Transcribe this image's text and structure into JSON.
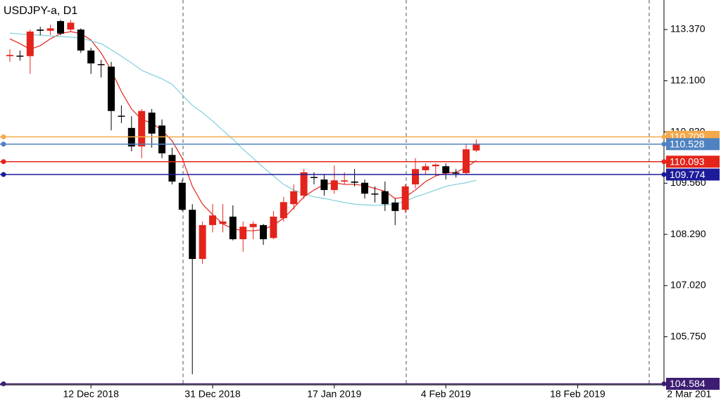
{
  "chart_data": {
    "type": "candlestick",
    "title": "USDJPY-a, D1",
    "categories": [
      null,
      null,
      null,
      null,
      null,
      null,
      null,
      null,
      "12 Dec 2018",
      null,
      null,
      null,
      null,
      null,
      null,
      null,
      null,
      null,
      null,
      null,
      "31 Dec 2018",
      null,
      null,
      null,
      null,
      null,
      null,
      null,
      null,
      null,
      null,
      null,
      "17 Jan 2019",
      null,
      null,
      null,
      null,
      null,
      null,
      null,
      null,
      null,
      null,
      "4 Feb 2019",
      null,
      null,
      null,
      null,
      null,
      null,
      null,
      null,
      null,
      null,
      null,
      null,
      "18 Feb 2019",
      null,
      null,
      null,
      null,
      null,
      null,
      null,
      null,
      null,
      null,
      "2 Mar 201"
    ],
    "open": [
      112.71,
      112.71,
      112.71,
      113.37,
      113.34,
      113.58,
      113.37,
      113.37,
      112.85,
      112.5,
      112.45,
      111.22,
      110.93,
      110.47,
      111.31,
      110.99,
      110.26,
      109.57,
      108.9,
      107.68,
      108.52,
      108.55,
      108.73,
      108.17,
      108.47,
      108.52,
      108.2,
      108.69,
      109.04,
      109.25,
      109.7,
      109.65,
      109.39,
      109.6,
      109.6,
      109.57,
      109.29,
      109.36,
      109.08,
      108.9,
      109.53,
      109.88,
      109.98,
      109.98,
      109.81,
      109.81,
      110.37,
      null,
      null,
      null,
      null,
      null,
      null,
      null,
      null,
      null,
      null,
      null,
      null,
      null,
      null,
      null,
      null,
      null,
      null,
      null,
      null,
      null
    ],
    "high": [
      112.88,
      112.85,
      113.37,
      113.44,
      113.49,
      113.61,
      113.61,
      113.4,
      112.92,
      112.62,
      112.57,
      111.49,
      111.22,
      111.4,
      111.4,
      111.14,
      110.44,
      109.65,
      109.04,
      108.61,
      109.04,
      109.04,
      109.01,
      108.61,
      108.61,
      108.55,
      108.87,
      109.22,
      109.53,
      109.91,
      109.83,
      109.78,
      110.0,
      109.83,
      109.91,
      109.65,
      109.48,
      109.6,
      109.18,
      109.53,
      110.18,
      110.05,
      110.05,
      110.05,
      109.91,
      110.53,
      110.65,
      null,
      null,
      null,
      null,
      null,
      null,
      null,
      null,
      null,
      null,
      null,
      null,
      null,
      null,
      null,
      null,
      null,
      null,
      null,
      null,
      null
    ],
    "low": [
      112.57,
      112.6,
      112.27,
      113.23,
      113.23,
      113.23,
      113.32,
      112.79,
      112.27,
      112.18,
      110.87,
      111.05,
      110.35,
      110.18,
      110.44,
      110.18,
      109.53,
      108.87,
      104.82,
      107.56,
      108.34,
      108.34,
      108.14,
      107.86,
      108.17,
      108.03,
      108.17,
      108.61,
      108.9,
      109.18,
      109.53,
      109.25,
      109.3,
      109.53,
      109.48,
      109.18,
      109.08,
      108.87,
      108.52,
      108.82,
      109.43,
      109.78,
      109.74,
      109.65,
      109.7,
      109.78,
      110.33,
      null,
      null,
      null,
      null,
      null,
      null,
      null,
      null,
      null,
      null,
      null,
      null,
      null,
      null,
      null,
      null,
      null,
      null,
      null,
      null,
      null
    ],
    "close": [
      112.74,
      112.71,
      113.32,
      113.34,
      113.4,
      113.27,
      113.54,
      112.85,
      112.53,
      112.5,
      111.35,
      111.22,
      110.47,
      111.35,
      110.79,
      110.3,
      109.6,
      108.9,
      107.68,
      108.52,
      108.76,
      108.61,
      108.17,
      108.48,
      108.55,
      108.17,
      108.73,
      109.09,
      109.36,
      109.83,
      109.7,
      109.39,
      109.63,
      109.63,
      109.57,
      109.3,
      109.29,
      109.04,
      108.87,
      109.48,
      109.91,
      109.98,
      110.02,
      109.81,
      109.81,
      110.4,
      110.54,
      null,
      null,
      null,
      null,
      null,
      null,
      null,
      null,
      null,
      null,
      null,
      null,
      null,
      null,
      null,
      null,
      null,
      null,
      null,
      null,
      null
    ],
    "up_color": "#e3241b",
    "down_color": "#000000",
    "lines": [
      {
        "color": "#e3241b",
        "values": [
          113.14,
          113.02,
          112.88,
          112.97,
          113.14,
          113.27,
          113.32,
          113.27,
          113.11,
          112.79,
          112.36,
          111.83,
          111.4,
          111.14,
          111.05,
          110.87,
          110.61,
          110.18,
          109.48,
          109.04,
          108.78,
          108.55,
          108.43,
          108.38,
          108.38,
          108.41,
          108.52,
          108.69,
          108.95,
          109.22,
          109.39,
          109.53,
          109.57,
          109.53,
          109.53,
          109.5,
          109.43,
          109.36,
          109.18,
          109.22,
          109.39,
          109.6,
          109.74,
          109.81,
          109.83,
          109.95,
          110.12,
          null,
          null,
          null,
          null,
          null,
          null,
          null,
          null,
          null,
          null,
          null,
          null,
          null,
          null,
          null,
          null,
          null,
          null,
          null,
          null,
          null
        ]
      },
      {
        "color": "#7fcfdc",
        "values": [
          113.28,
          113.26,
          113.24,
          113.23,
          113.21,
          113.2,
          113.18,
          113.16,
          113.09,
          113.02,
          112.87,
          112.71,
          112.54,
          112.36,
          112.25,
          112.15,
          112.01,
          111.75,
          111.49,
          111.31,
          111.1,
          110.87,
          110.65,
          110.4,
          110.18,
          109.95,
          109.74,
          109.53,
          109.39,
          109.3,
          109.22,
          109.18,
          109.13,
          109.08,
          109.04,
          109.02,
          109.01,
          109.02,
          109.04,
          109.11,
          109.22,
          109.3,
          109.39,
          109.48,
          109.53,
          109.57,
          109.63,
          null,
          null,
          null,
          null,
          null,
          null,
          null,
          null,
          null,
          null,
          null,
          null,
          null,
          null,
          null,
          null,
          null,
          null,
          null,
          null,
          null
        ]
      }
    ],
    "levels": [
      {
        "value": 110.709,
        "color": "#f5a94a"
      },
      {
        "value": 110.528,
        "color": "#4f82c0"
      },
      {
        "value": 110.093,
        "color": "#e3241b"
      },
      {
        "value": 109.774,
        "color": "#1c1c9a"
      },
      {
        "value": 104.584,
        "color": "#3d1d72"
      }
    ],
    "ylim": [
      104.557,
      114.103
    ],
    "yticks": [
      {
        "value": 113.37,
        "label": "113.370"
      },
      {
        "value": 112.1,
        "label": "112.100"
      },
      {
        "value": 110.83,
        "label": "110.830"
      },
      {
        "value": 109.56,
        "label": "109.560"
      },
      {
        "value": 108.29,
        "label": "108.290"
      },
      {
        "value": 107.02,
        "label": "107.020"
      },
      {
        "value": 105.75,
        "label": "105.750"
      }
    ]
  }
}
